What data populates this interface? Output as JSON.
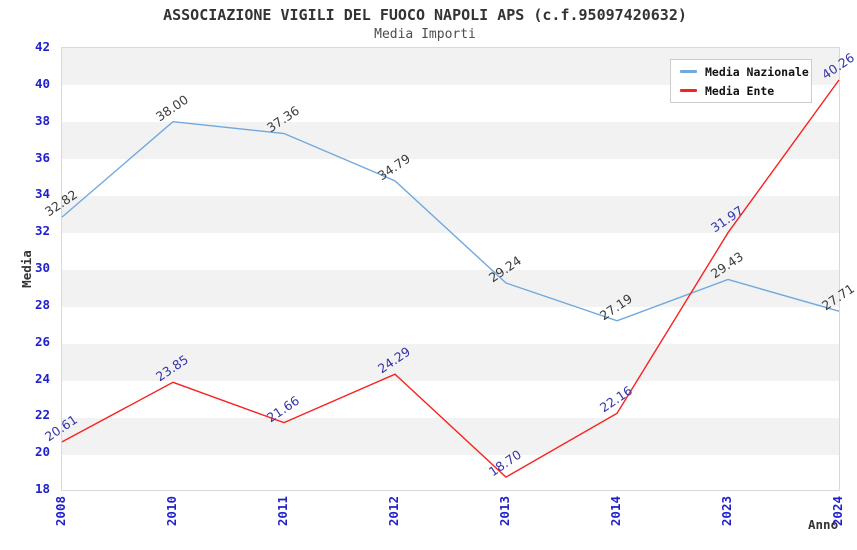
{
  "page": {
    "background": "#ffffff"
  },
  "chart_data": {
    "type": "line",
    "title": "ASSOCIAZIONE VIGILI DEL FUOCO NAPOLI APS (c.f.95097420632)",
    "subtitle": "Media Importi",
    "xlabel": "Anno",
    "ylabel": "Media",
    "categories": [
      "2008",
      "2010",
      "2011",
      "2012",
      "2013",
      "2014",
      "2023",
      "2024"
    ],
    "series": [
      {
        "name": "Media Nazionale",
        "color": "#70a9de",
        "label_color": "#3c3c3c",
        "values": [
          32.82,
          38.0,
          37.36,
          34.79,
          29.24,
          27.19,
          29.43,
          27.71
        ]
      },
      {
        "name": "Media Ente",
        "color": "#f82222",
        "label_color": "#3434a8",
        "values": [
          20.61,
          23.85,
          21.66,
          24.29,
          18.7,
          22.16,
          31.97,
          40.26
        ]
      }
    ],
    "ylim": [
      18,
      42
    ],
    "ytick_step": 2,
    "tick_color": "#2121cc",
    "band_colors": [
      "#f2f2f2",
      "#ffffff"
    ],
    "grid": "banded-rows",
    "legend_position": "top-right"
  }
}
